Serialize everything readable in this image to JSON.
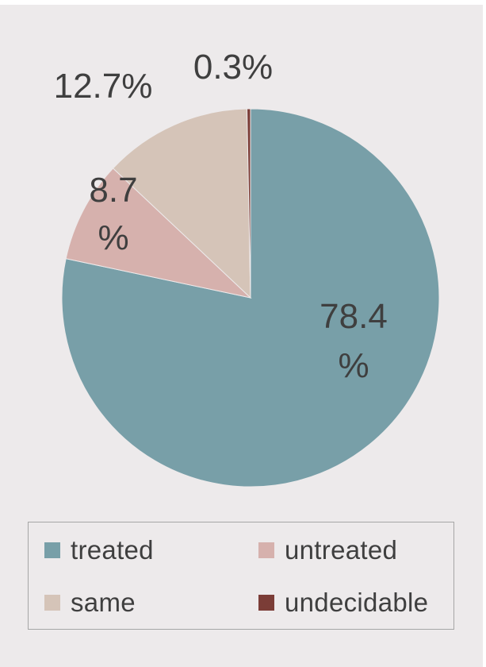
{
  "chart_data": {
    "type": "pie",
    "title": "",
    "slices": [
      {
        "name": "treated",
        "value": 78.4,
        "label_lines": [
          "78.4",
          "%"
        ],
        "color": "#789fa8"
      },
      {
        "name": "untreated",
        "value": 8.7,
        "label_lines": [
          "8.7",
          "%"
        ],
        "color": "#d6b1ad"
      },
      {
        "name": "same",
        "value": 12.7,
        "label_lines": [
          "12.7%"
        ],
        "color": "#d5c4b8"
      },
      {
        "name": "undecidable",
        "value": 0.3,
        "label_lines": [
          "0.3%"
        ],
        "color": "#7b3d37"
      }
    ],
    "legend": {
      "position": "bottom",
      "entries": [
        "treated",
        "untreated",
        "same",
        "undecidable"
      ]
    }
  },
  "colors": {
    "background": "#edeaeb",
    "label_text": "#3f3f3f",
    "legend_border": "#a6a6a6"
  }
}
